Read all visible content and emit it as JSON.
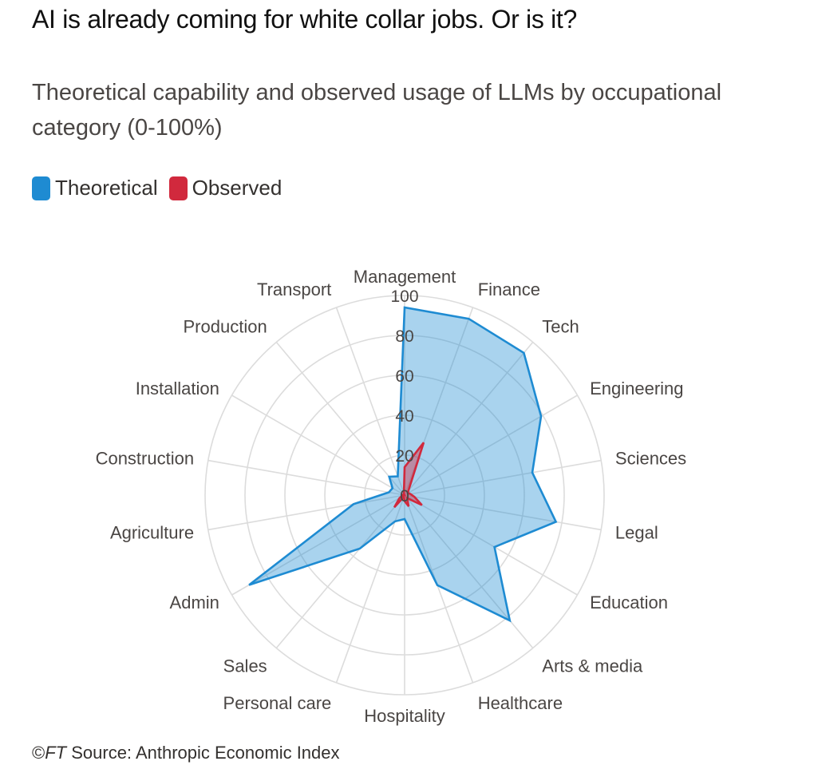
{
  "title": "AI is already coming for white collar jobs. Or is it?",
  "subtitle": "Theoretical capability and observed usage of LLMs by occupational category (0-100%)",
  "legend": [
    {
      "label": "Theoretical",
      "color": "#1e8bd2"
    },
    {
      "label": "Observed",
      "color": "#d1293d"
    }
  ],
  "footer": {
    "copyright": "©",
    "publisher": "FT",
    "source": " Source: Anthropic Economic Index"
  },
  "chart_data": {
    "type": "radar",
    "categories": [
      "Management",
      "Finance",
      "Tech",
      "Engineering",
      "Sciences",
      "Legal",
      "Education",
      "Arts & media",
      "Healthcare",
      "Hospitality",
      "Personal care",
      "Sales",
      "Admin",
      "Agriculture",
      "Construction",
      "Installation",
      "Production",
      "Transport"
    ],
    "series": [
      {
        "name": "Theoretical",
        "color": "#1e8bd2",
        "values": [
          94,
          94,
          93,
          79,
          65,
          77,
          52,
          82,
          48,
          12,
          14,
          35,
          90,
          26,
          8,
          7,
          12,
          10
        ]
      },
      {
        "name": "Observed",
        "color": "#d1293d",
        "values": [
          14,
          28,
          3,
          2,
          3,
          5,
          10,
          2,
          6,
          3,
          1,
          8,
          3,
          1,
          1,
          0,
          0,
          1
        ]
      }
    ],
    "radial_ticks": [
      20,
      40,
      60,
      80,
      100
    ],
    "rlim": [
      0,
      100
    ],
    "tick_labels": [
      "0",
      "20",
      "40",
      "60",
      "80",
      "100"
    ],
    "grid": true,
    "legend_position": "top-left"
  }
}
